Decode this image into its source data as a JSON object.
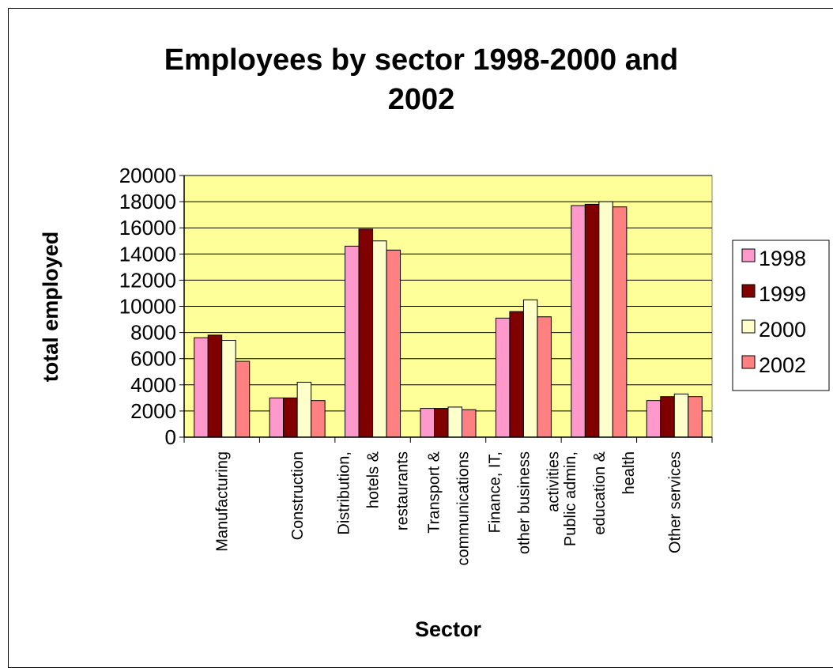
{
  "chart_data": {
    "type": "bar",
    "title_lines": [
      "Employees by sector 1998-2000 and",
      "2002"
    ],
    "xlabel": "Sector",
    "ylabel": "total employed",
    "ylim": [
      0,
      20000
    ],
    "yticks": [
      0,
      2000,
      4000,
      6000,
      8000,
      10000,
      12000,
      14000,
      16000,
      18000,
      20000
    ],
    "grid": true,
    "legend_position": "right",
    "plot_background": "#FFFF99",
    "categories": [
      [
        "Manufacturing"
      ],
      [
        "Construction"
      ],
      [
        "Distribution,",
        "hotels &",
        "restaurants"
      ],
      [
        "Transport &",
        "communications"
      ],
      [
        "Finance, IT,",
        "other business",
        "activities"
      ],
      [
        "Public admin,",
        "education &",
        "health"
      ],
      [
        "Other services"
      ]
    ],
    "series": [
      {
        "name": "1998",
        "color": "#FF99CC",
        "values": [
          7600,
          3000,
          14600,
          2200,
          9100,
          17700,
          2800
        ]
      },
      {
        "name": "1999",
        "color": "#800000",
        "values": [
          7800,
          3000,
          15900,
          2200,
          9600,
          17800,
          3100
        ]
      },
      {
        "name": "2000",
        "color": "#FFFFCC",
        "values": [
          7400,
          4200,
          15000,
          2300,
          10500,
          18000,
          3300
        ]
      },
      {
        "name": "2002",
        "color": "#FF8080",
        "values": [
          5800,
          2800,
          14300,
          2100,
          9200,
          17600,
          3100
        ]
      }
    ]
  }
}
